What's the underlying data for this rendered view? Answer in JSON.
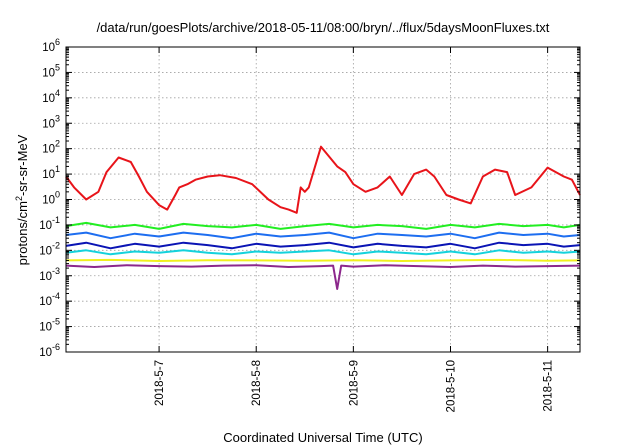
{
  "chart_data": {
    "type": "line",
    "title": "/data/run/goesPlots/archive/2018-05-11/08:00/bryn/../flux/5daysMoonFluxes.txt",
    "xlabel": "Coordinated Universal Time (UTC)",
    "ylabel": "protons/cm2-sr-sr-MeV",
    "ylabel_parts": {
      "pre": "protons/cm",
      "sup": "2",
      "post": "-sr-sr-MeV"
    },
    "yscale": "log",
    "ylim": [
      1e-06,
      1000000.0
    ],
    "xlim": [
      "2018-05-06 01:00",
      "2018-05-11 08:00"
    ],
    "grid": true,
    "x_ticks": [
      {
        "label": "2018-5-7",
        "value": "2018-05-07 00:00"
      },
      {
        "label": "2018-5-8",
        "value": "2018-05-08 00:00"
      },
      {
        "label": "2018-5-9",
        "value": "2018-05-09 00:00"
      },
      {
        "label": "2018-5-10",
        "value": "2018-05-10 00:00"
      },
      {
        "label": "2018-5-11",
        "value": "2018-05-11 00:00"
      }
    ],
    "y_ticks": [
      {
        "exp": "-6",
        "value": 1e-06
      },
      {
        "exp": "-5",
        "value": 1e-05
      },
      {
        "exp": "-4",
        "value": 0.0001
      },
      {
        "exp": "-3",
        "value": 0.001
      },
      {
        "exp": "-2",
        "value": 0.01
      },
      {
        "exp": "-1",
        "value": 0.1
      },
      {
        "exp": "0",
        "value": 1
      },
      {
        "exp": "1",
        "value": 10
      },
      {
        "exp": "2",
        "value": 100
      },
      {
        "exp": "3",
        "value": 1000
      },
      {
        "exp": "4",
        "value": 10000
      },
      {
        "exp": "5",
        "value": 100000
      },
      {
        "exp": "6",
        "value": 1000000
      }
    ],
    "series": [
      {
        "color": "#e8141a",
        "x": [
          "2018-05-06 01:00",
          "2018-05-06 03:00",
          "2018-05-06 06:00",
          "2018-05-06 09:00",
          "2018-05-06 11:00",
          "2018-05-06 14:00",
          "2018-05-06 17:00",
          "2018-05-06 19:00",
          "2018-05-06 21:00",
          "2018-05-07 00:00",
          "2018-05-07 02:00",
          "2018-05-07 04:00",
          "2018-05-07 05:00",
          "2018-05-07 07:00",
          "2018-05-07 09:00",
          "2018-05-07 12:00",
          "2018-05-07 15:00",
          "2018-05-07 19:00",
          "2018-05-07 23:00",
          "2018-05-08 03:00",
          "2018-05-08 06:00",
          "2018-05-08 08:00",
          "2018-05-08 10:00",
          "2018-05-08 11:00",
          "2018-05-08 12:00",
          "2018-05-08 13:00",
          "2018-05-08 16:00",
          "2018-05-08 20:00",
          "2018-05-08 22:00",
          "2018-05-09 00:00",
          "2018-05-09 03:00",
          "2018-05-09 06:00",
          "2018-05-09 09:00",
          "2018-05-09 12:00",
          "2018-05-09 15:00",
          "2018-05-09 18:00",
          "2018-05-09 20:00",
          "2018-05-09 23:00",
          "2018-05-10 02:00",
          "2018-05-10 05:00",
          "2018-05-10 08:00",
          "2018-05-10 11:00",
          "2018-05-10 14:00",
          "2018-05-10 16:00",
          "2018-05-10 20:00",
          "2018-05-11 00:00",
          "2018-05-11 04:00",
          "2018-05-11 06:00",
          "2018-05-11 08:00"
        ],
        "values": [
          8,
          3,
          1,
          2,
          12,
          45,
          30,
          8,
          2,
          0.6,
          0.4,
          1.5,
          3,
          4,
          6,
          8,
          9,
          7,
          4,
          1,
          0.5,
          0.4,
          0.3,
          3,
          2,
          3,
          120,
          20,
          12,
          4,
          2,
          3,
          8,
          1.5,
          10,
          15,
          8,
          1.5,
          1,
          0.7,
          8,
          15,
          12,
          1.5,
          3,
          18,
          8,
          6,
          1.5
        ]
      },
      {
        "color": "#22ee22",
        "x": [
          "2018-05-06 01:00",
          "2018-05-06 06:00",
          "2018-05-06 12:00",
          "2018-05-06 18:00",
          "2018-05-07 00:00",
          "2018-05-07 06:00",
          "2018-05-07 12:00",
          "2018-05-07 18:00",
          "2018-05-08 00:00",
          "2018-05-08 06:00",
          "2018-05-08 12:00",
          "2018-05-08 18:00",
          "2018-05-09 00:00",
          "2018-05-09 06:00",
          "2018-05-09 12:00",
          "2018-05-09 18:00",
          "2018-05-10 00:00",
          "2018-05-10 06:00",
          "2018-05-10 12:00",
          "2018-05-10 18:00",
          "2018-05-11 00:00",
          "2018-05-11 04:00",
          "2018-05-11 08:00"
        ],
        "values": [
          0.09,
          0.12,
          0.08,
          0.1,
          0.07,
          0.11,
          0.09,
          0.08,
          0.1,
          0.07,
          0.09,
          0.11,
          0.08,
          0.1,
          0.09,
          0.07,
          0.1,
          0.08,
          0.11,
          0.09,
          0.1,
          0.08,
          0.1
        ]
      },
      {
        "color": "#1e6ef0",
        "x": [
          "2018-05-06 01:00",
          "2018-05-06 06:00",
          "2018-05-06 12:00",
          "2018-05-06 18:00",
          "2018-05-07 00:00",
          "2018-05-07 06:00",
          "2018-05-07 12:00",
          "2018-05-07 18:00",
          "2018-05-08 00:00",
          "2018-05-08 06:00",
          "2018-05-08 12:00",
          "2018-05-08 18:00",
          "2018-05-09 00:00",
          "2018-05-09 06:00",
          "2018-05-09 12:00",
          "2018-05-09 18:00",
          "2018-05-10 00:00",
          "2018-05-10 06:00",
          "2018-05-10 12:00",
          "2018-05-10 18:00",
          "2018-05-11 00:00",
          "2018-05-11 04:00",
          "2018-05-11 08:00"
        ],
        "values": [
          0.04,
          0.05,
          0.03,
          0.045,
          0.035,
          0.05,
          0.04,
          0.03,
          0.045,
          0.035,
          0.04,
          0.05,
          0.03,
          0.045,
          0.04,
          0.035,
          0.045,
          0.03,
          0.05,
          0.04,
          0.045,
          0.035,
          0.04
        ]
      },
      {
        "color": "#0a14b4",
        "x": [
          "2018-05-06 01:00",
          "2018-05-06 06:00",
          "2018-05-06 12:00",
          "2018-05-06 18:00",
          "2018-05-07 00:00",
          "2018-05-07 06:00",
          "2018-05-07 12:00",
          "2018-05-07 18:00",
          "2018-05-08 00:00",
          "2018-05-08 06:00",
          "2018-05-08 12:00",
          "2018-05-08 18:00",
          "2018-05-09 00:00",
          "2018-05-09 06:00",
          "2018-05-09 12:00",
          "2018-05-09 18:00",
          "2018-05-10 00:00",
          "2018-05-10 06:00",
          "2018-05-10 12:00",
          "2018-05-10 18:00",
          "2018-05-11 00:00",
          "2018-05-11 04:00",
          "2018-05-11 08:00"
        ],
        "values": [
          0.015,
          0.02,
          0.012,
          0.018,
          0.014,
          0.02,
          0.016,
          0.012,
          0.018,
          0.014,
          0.016,
          0.02,
          0.013,
          0.018,
          0.015,
          0.013,
          0.018,
          0.012,
          0.02,
          0.016,
          0.018,
          0.014,
          0.016
        ]
      },
      {
        "color": "#14d2dc",
        "x": [
          "2018-05-06 01:00",
          "2018-05-06 06:00",
          "2018-05-06 12:00",
          "2018-05-06 18:00",
          "2018-05-07 00:00",
          "2018-05-07 06:00",
          "2018-05-07 12:00",
          "2018-05-07 18:00",
          "2018-05-08 00:00",
          "2018-05-08 06:00",
          "2018-05-08 12:00",
          "2018-05-08 18:00",
          "2018-05-09 00:00",
          "2018-05-09 06:00",
          "2018-05-09 12:00",
          "2018-05-09 18:00",
          "2018-05-10 00:00",
          "2018-05-10 06:00",
          "2018-05-10 12:00",
          "2018-05-10 18:00",
          "2018-05-11 00:00",
          "2018-05-11 04:00",
          "2018-05-11 08:00"
        ],
        "values": [
          0.008,
          0.01,
          0.007,
          0.009,
          0.008,
          0.01,
          0.008,
          0.007,
          0.009,
          0.008,
          0.009,
          0.01,
          0.007,
          0.009,
          0.008,
          0.007,
          0.009,
          0.007,
          0.01,
          0.008,
          0.009,
          0.008,
          0.009
        ]
      },
      {
        "color": "#f0f01e",
        "x": [
          "2018-05-06 01:00",
          "2018-05-06 12:00",
          "2018-05-07 00:00",
          "2018-05-07 12:00",
          "2018-05-08 00:00",
          "2018-05-08 12:00",
          "2018-05-09 00:00",
          "2018-05-09 12:00",
          "2018-05-10 00:00",
          "2018-05-10 12:00",
          "2018-05-11 00:00",
          "2018-05-11 08:00"
        ],
        "values": [
          0.004,
          0.0042,
          0.0038,
          0.0041,
          0.004,
          0.0039,
          0.0041,
          0.0038,
          0.004,
          0.0042,
          0.0039,
          0.004
        ]
      },
      {
        "color": "#8c288c",
        "x": [
          "2018-05-06 01:00",
          "2018-05-06 08:00",
          "2018-05-06 16:00",
          "2018-05-07 00:00",
          "2018-05-07 08:00",
          "2018-05-07 16:00",
          "2018-05-08 00:00",
          "2018-05-08 08:00",
          "2018-05-08 16:00",
          "2018-05-08 19:00",
          "2018-05-08 20:00",
          "2018-05-08 21:00",
          "2018-05-09 00:00",
          "2018-05-09 08:00",
          "2018-05-09 16:00",
          "2018-05-10 00:00",
          "2018-05-10 08:00",
          "2018-05-10 16:00",
          "2018-05-11 00:00",
          "2018-05-11 08:00"
        ],
        "values": [
          0.0025,
          0.0022,
          0.0026,
          0.0024,
          0.0023,
          0.0025,
          0.0026,
          0.0022,
          0.0024,
          0.0025,
          0.0003,
          0.0025,
          0.0023,
          0.0026,
          0.0024,
          0.0022,
          0.0025,
          0.0023,
          0.0024,
          0.0025
        ]
      }
    ]
  }
}
